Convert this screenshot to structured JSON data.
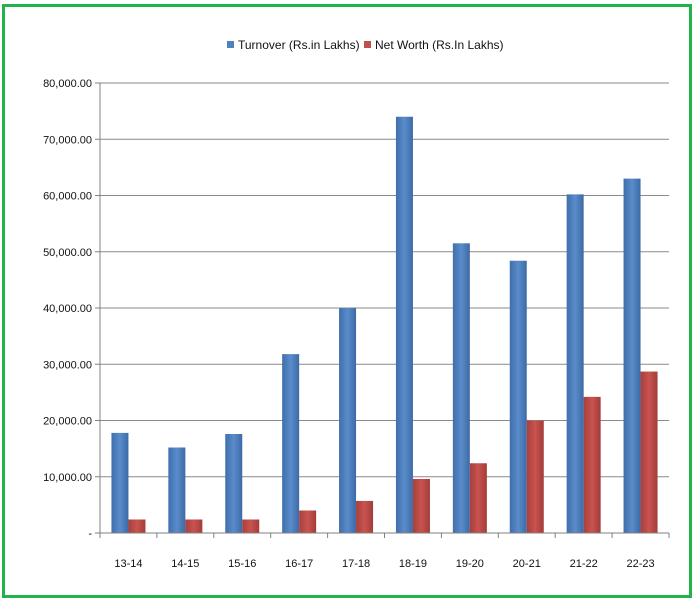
{
  "chart_data": {
    "type": "bar",
    "categories": [
      "13-14",
      "14-15",
      "15-16",
      "16-17",
      "17-18",
      "18-19",
      "19-20",
      "20-21",
      "21-22",
      "22-23"
    ],
    "series": [
      {
        "name": "Turnover (Rs.in Lakhs)",
        "color": "#4f81bd",
        "values": [
          17800,
          15200,
          17600,
          31800,
          40000,
          74000,
          51500,
          48400,
          60200,
          63000
        ]
      },
      {
        "name": "Net Worth (Rs.In Lakhs)",
        "color": "#c0504d",
        "values": [
          2400,
          2400,
          2400,
          4000,
          5700,
          9600,
          12400,
          20000,
          24200,
          28700
        ]
      }
    ],
    "ylim": [
      0,
      80000
    ],
    "yticks": [
      0,
      10000,
      20000,
      30000,
      40000,
      50000,
      60000,
      70000,
      80000
    ],
    "ytick_labels": [
      "-",
      "10,000.00",
      "20,000.00",
      "30,000.00",
      "40,000.00",
      "50,000.00",
      "60,000.00",
      "70,000.00",
      "80,000.00"
    ],
    "grid": true,
    "legend": "top-center",
    "frame_color": "#22b24c"
  }
}
